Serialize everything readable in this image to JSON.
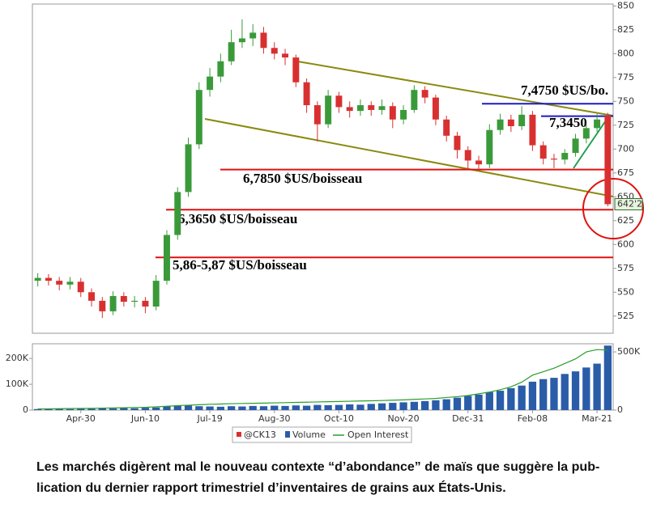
{
  "chart_data": [
    {
      "type": "candlestick",
      "name": "@CK13",
      "up_color": "#3a9a3a",
      "down_color": "#d83030",
      "open": [
        562,
        565,
        562,
        558,
        561,
        550,
        541,
        530,
        546,
        540,
        541,
        535,
        562,
        610,
        655,
        705,
        762,
        776,
        792,
        812,
        816,
        822,
        806,
        800,
        796,
        770,
        746,
        726,
        756,
        744,
        740,
        746,
        741,
        745,
        731,
        741,
        762,
        754,
        731,
        714,
        699,
        688,
        684,
        720,
        731,
        724,
        736,
        704,
        690,
        689,
        696,
        711,
        722,
        735
      ],
      "high": [
        570,
        569,
        566,
        566,
        565,
        554,
        545,
        551,
        550,
        546,
        545,
        568,
        615,
        660,
        712,
        770,
        785,
        800,
        825,
        836,
        831,
        828,
        812,
        805,
        799,
        774,
        750,
        762,
        760,
        750,
        752,
        750,
        752,
        749,
        746,
        767,
        766,
        757,
        735,
        718,
        703,
        693,
        726,
        737,
        736,
        745,
        740,
        708,
        695,
        700,
        716,
        727,
        737,
        738
      ],
      "low": [
        556,
        557,
        552,
        553,
        545,
        535,
        523,
        526,
        535,
        534,
        528,
        531,
        558,
        605,
        650,
        700,
        755,
        770,
        788,
        806,
        808,
        800,
        794,
        788,
        765,
        738,
        708,
        722,
        738,
        733,
        735,
        735,
        736,
        722,
        726,
        738,
        748,
        725,
        708,
        690,
        678,
        677,
        680,
        715,
        718,
        720,
        698,
        684,
        680,
        684,
        692,
        706,
        718,
        640
      ],
      "close": [
        565,
        562,
        558,
        561,
        550,
        541,
        530,
        546,
        540,
        541,
        535,
        562,
        610,
        655,
        705,
        762,
        776,
        792,
        812,
        816,
        822,
        806,
        800,
        796,
        770,
        746,
        726,
        756,
        744,
        740,
        746,
        741,
        745,
        731,
        741,
        762,
        754,
        731,
        714,
        699,
        688,
        684,
        720,
        731,
        724,
        736,
        704,
        690,
        689,
        696,
        711,
        722,
        731,
        642.25
      ],
      "ylim": [
        507,
        852
      ],
      "yticks": [
        525,
        550,
        575,
        600,
        625,
        650,
        675,
        700,
        725,
        750,
        775,
        800,
        825,
        850
      ],
      "last_price": {
        "value": 642.25,
        "label": "642'2"
      },
      "annotations": [
        {
          "text": "7,4750 $US/bo.",
          "level": 747.5,
          "color": "#1a1ac8"
        },
        {
          "text": "7,3450",
          "level": 734.5,
          "color": "#1a1ac8"
        },
        {
          "text": "6,7850 $US/boisseau",
          "level": 678.5,
          "color": "#e01010"
        },
        {
          "text": "6,3650 $US/boisseau",
          "level": 636.5,
          "color": "#e01010"
        },
        {
          "text": "5,86-5,87 $US/boisseau",
          "level": 586.5,
          "color": "#e01010"
        }
      ]
    },
    {
      "type": "bar",
      "categories": [
        null,
        null,
        null,
        null,
        "Apr-30",
        null,
        null,
        null,
        null,
        null,
        "Jun-10",
        null,
        null,
        null,
        null,
        null,
        "Jul-19",
        null,
        null,
        null,
        null,
        null,
        "Aug-30",
        null,
        null,
        null,
        null,
        null,
        "Oct-10",
        null,
        null,
        null,
        null,
        null,
        "Nov-20",
        null,
        null,
        null,
        null,
        null,
        "Dec-31",
        null,
        null,
        null,
        null,
        null,
        "Feb-08",
        null,
        null,
        null,
        null,
        null,
        "Mar-21",
        null
      ],
      "series": [
        {
          "name": "Volume",
          "color": "#2a5ca8",
          "values": [
            4000,
            3500,
            5000,
            4000,
            6000,
            5000,
            7000,
            6000,
            8000,
            7000,
            9000,
            10000,
            14000,
            16000,
            18000,
            15000,
            14000,
            13000,
            15000,
            14000,
            16000,
            15000,
            17000,
            16000,
            18000,
            17000,
            20000,
            19000,
            20000,
            22000,
            21000,
            24000,
            26000,
            28000,
            30000,
            32000,
            35000,
            38000,
            42000,
            48000,
            55000,
            60000,
            70000,
            75000,
            85000,
            95000,
            110000,
            120000,
            125000,
            140000,
            150000,
            165000,
            180000,
            250000
          ]
        },
        {
          "name": "Open Interest",
          "color": "#2a9d2a",
          "axis": "y2",
          "values": [
            10000,
            11000,
            12000,
            13000,
            14000,
            15000,
            17000,
            18000,
            20000,
            22000,
            24000,
            28000,
            33000,
            38000,
            42000,
            46000,
            50000,
            52000,
            55000,
            57000,
            58000,
            60000,
            62000,
            64000,
            66000,
            68000,
            70000,
            72000,
            74000,
            76000,
            78000,
            80000,
            82000,
            85000,
            88000,
            92000,
            96000,
            100000,
            108000,
            115000,
            125000,
            140000,
            155000,
            175000,
            200000,
            240000,
            300000,
            330000,
            360000,
            400000,
            440000,
            500000,
            520000,
            515000
          ]
        }
      ],
      "ylim": [
        0,
        257000
      ],
      "yticks": [
        0,
        {
          "value": 100000,
          "label": "100K"
        },
        {
          "value": 200000,
          "label": "200K"
        }
      ],
      "y2lim": [
        0,
        570000
      ],
      "y2ticks": [
        0,
        {
          "value": 500000,
          "label": "500K"
        }
      ]
    }
  ],
  "caption": [
    "Les marchés digèrent mal le nouveau contexte “d’abondance” de maïs que suggère la pub-",
    "lication du dernier rapport trimestriel d’inventaires de grains aux États-Unis."
  ]
}
